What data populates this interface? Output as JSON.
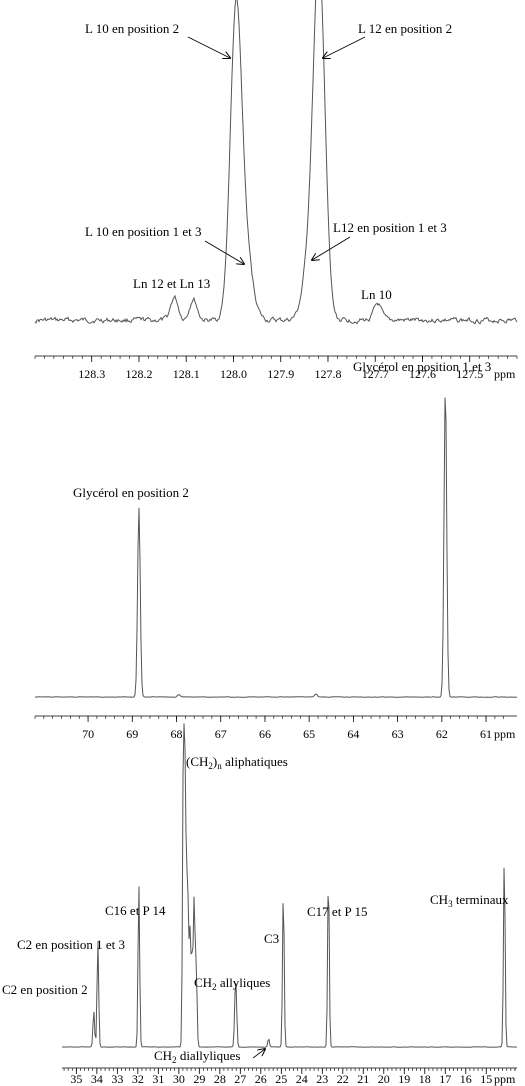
{
  "chart_data": [
    {
      "type": "line",
      "title": "",
      "xlabel": "ppm",
      "ylabel": "",
      "xlim": [
        128.42,
        127.4
      ],
      "xticks": [
        128.3,
        128.2,
        128.1,
        128.0,
        127.9,
        127.8,
        127.7,
        127.6,
        127.5
      ],
      "xtick_labels": [
        "128.3",
        "128.2",
        "128.1",
        "128.0",
        "127.9",
        "127.8",
        "127.7",
        "127.6",
        "127.5"
      ],
      "grid": false,
      "series": [
        {
          "peaks": [
            {
              "ppm": 128.125,
              "height": 0.07
            },
            {
              "ppm": 128.085,
              "height": 0.065
            },
            {
              "ppm": 127.995,
              "height": 0.9,
              "width": 0.012
            },
            {
              "ppm": 127.975,
              "height": 0.2,
              "width": 0.015
            },
            {
              "ppm": 127.818,
              "height": 1.0,
              "width": 0.012
            },
            {
              "ppm": 127.835,
              "height": 0.22,
              "width": 0.015
            },
            {
              "ppm": 127.695,
              "height": 0.05
            }
          ],
          "baseline": 0.03
        }
      ],
      "annotations": [
        {
          "text": "L 10 en position 2"
        },
        {
          "text": "L 12 en position 2"
        },
        {
          "text": "L 10 en position 1 et 3"
        },
        {
          "text": "L12 en position 1 et 3"
        },
        {
          "text": "Ln 12 et Ln 13"
        },
        {
          "text": "Ln 10"
        }
      ]
    },
    {
      "type": "line",
      "title": "",
      "xlabel": "ppm",
      "ylabel": "",
      "xlim": [
        71.2,
        60.3
      ],
      "xticks": [
        70,
        69,
        68,
        67,
        66,
        65,
        64,
        63,
        62,
        61
      ],
      "xtick_labels": [
        "70",
        "69",
        "68",
        "67",
        "66",
        "65",
        "64",
        "63",
        "62",
        "61"
      ],
      "grid": false,
      "series": [
        {
          "peaks": [
            {
              "ppm": 68.85,
              "height": 0.61
            },
            {
              "ppm": 61.92,
              "height": 1.0
            },
            {
              "ppm": 64.85,
              "height": 0.01
            },
            {
              "ppm": 67.95,
              "height": 0.008
            }
          ],
          "baseline": 0.0
        }
      ],
      "annotations": [
        {
          "text": "Glycérol en position 2"
        },
        {
          "text": "Glycérol en position 1 et 3"
        }
      ]
    },
    {
      "type": "line",
      "title": "",
      "xlabel": "ppm",
      "ylabel": "",
      "xlim": [
        35.7,
        13.5
      ],
      "xticks": [
        35,
        34,
        33,
        32,
        31,
        30,
        29,
        28,
        27,
        26,
        25,
        24,
        23,
        22,
        21,
        20,
        19,
        18,
        17,
        16,
        15
      ],
      "xtick_labels": [
        "35",
        "34",
        "33",
        "32",
        "31",
        "30",
        "29",
        "28",
        "27",
        "26",
        "25",
        "24",
        "23",
        "22",
        "21",
        "20",
        "19",
        "18",
        "17",
        "16",
        "15"
      ],
      "grid": false,
      "series": [
        {
          "peaks": [
            {
              "ppm": 34.15,
              "height": 0.13
            },
            {
              "ppm": 33.95,
              "height": 0.38
            },
            {
              "ppm": 31.95,
              "height": 0.58
            },
            {
              "ppm": 29.78,
              "height": 1.0
            },
            {
              "ppm": 29.7,
              "height": 0.87
            },
            {
              "ppm": 29.62,
              "height": 0.45
            },
            {
              "ppm": 29.55,
              "height": 0.42
            },
            {
              "ppm": 29.45,
              "height": 0.4
            },
            {
              "ppm": 29.35,
              "height": 0.3
            },
            {
              "ppm": 29.25,
              "height": 0.52
            },
            {
              "ppm": 29.15,
              "height": 0.28
            },
            {
              "ppm": 27.25,
              "height": 0.15
            },
            {
              "ppm": 27.2,
              "height": 0.14
            },
            {
              "ppm": 25.62,
              "height": 0.03
            },
            {
              "ppm": 24.9,
              "height": 0.56
            },
            {
              "ppm": 22.7,
              "height": 0.62
            },
            {
              "ppm": 14.12,
              "height": 0.68
            }
          ],
          "baseline": 0.0
        }
      ],
      "annotations": [
        {
          "text": "(CH"
        },
        {
          "text": "2"
        },
        {
          "text": ")"
        },
        {
          "text": "n"
        },
        {
          "text": " aliphatiques"
        },
        {
          "text": "CH"
        },
        {
          "text": "3"
        },
        {
          "text": " terminaux"
        },
        {
          "text": "C16 et P 14"
        },
        {
          "text": "C2 en position 1 et 3"
        },
        {
          "text": "C2 en position 2"
        },
        {
          "text": "C3"
        },
        {
          "text": "C17 et P 15"
        },
        {
          "text": "CH"
        },
        {
          "text": "2"
        },
        {
          "text": " allyliques"
        },
        {
          "text": "CH"
        },
        {
          "text": "2"
        },
        {
          "text": " diallyliques"
        }
      ]
    }
  ]
}
